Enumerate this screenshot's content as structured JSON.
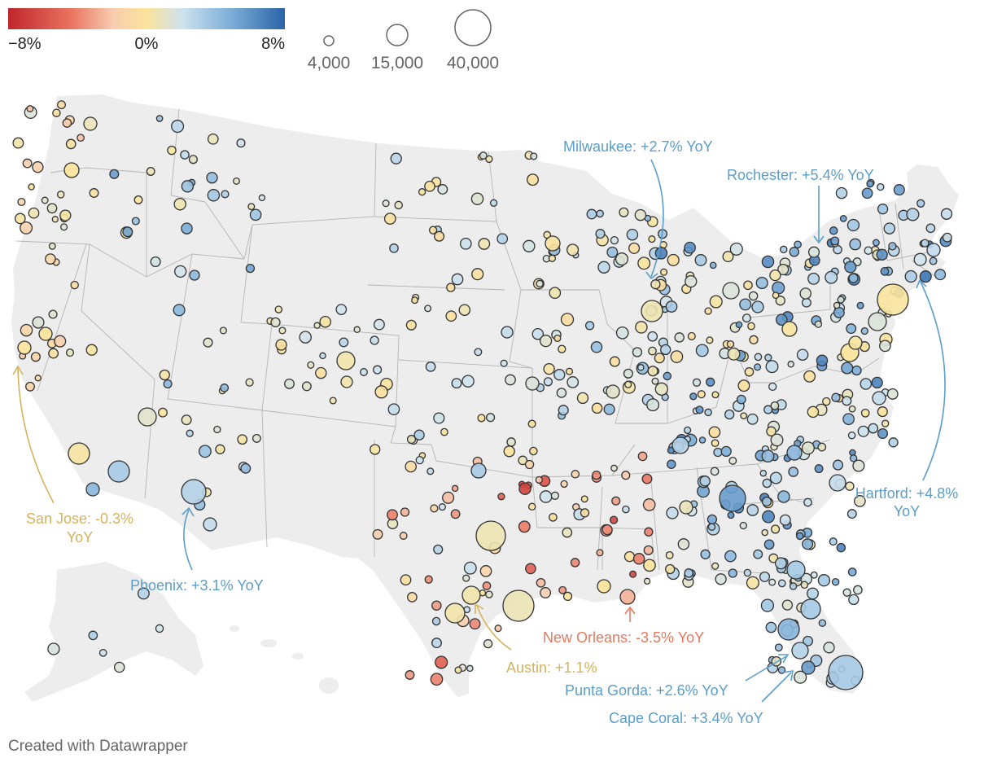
{
  "legend": {
    "color_scale": {
      "min_label": "−8%",
      "mid_label": "0%",
      "max_label": "8%",
      "stops": [
        "#c0262d",
        "#e8705d",
        "#f8cdb0",
        "#fbe39a",
        "#cde2ee",
        "#7fb0d9",
        "#2a64a8"
      ]
    },
    "size_scale": [
      {
        "value": 4000,
        "label": "4,000"
      },
      {
        "value": 15000,
        "label": "15,000"
      },
      {
        "value": 40000,
        "label": "40,000"
      }
    ]
  },
  "annotations": [
    {
      "id": "milwaukee",
      "lines": [
        "Milwaukee: +2.7% YoY"
      ],
      "color": "#5b9ec9",
      "yoy": 2.7
    },
    {
      "id": "rochester",
      "lines": [
        "Rochester: +5.4% YoY"
      ],
      "color": "#5b9ec9",
      "yoy": 5.4
    },
    {
      "id": "hartford",
      "lines": [
        "Hartford: +4.8%",
        "YoY"
      ],
      "color": "#5b9ec9",
      "yoy": 4.8
    },
    {
      "id": "san-jose",
      "lines": [
        "San Jose: -0.3%",
        "YoY"
      ],
      "color": "#d6b35c",
      "yoy": -0.3
    },
    {
      "id": "phoenix",
      "lines": [
        "Phoenix: +3.1% YoY"
      ],
      "color": "#5b9ec9",
      "yoy": 3.1
    },
    {
      "id": "new-orleans",
      "lines": [
        "New Orleans: -3.5% YoY"
      ],
      "color": "#e8785d",
      "yoy": -3.5
    },
    {
      "id": "austin",
      "lines": [
        "Austin: +1.1%"
      ],
      "color": "#d6b35c",
      "yoy": 1.1
    },
    {
      "id": "punta-gorda",
      "lines": [
        "Punta Gorda: +2.6% YoY"
      ],
      "color": "#5b9ec9",
      "yoy": 2.6
    },
    {
      "id": "cape-coral",
      "lines": [
        "Cape Coral: +3.4% YoY"
      ],
      "color": "#5b9ec9",
      "yoy": 3.4
    }
  ],
  "credit": "Created with Datawrapper"
}
